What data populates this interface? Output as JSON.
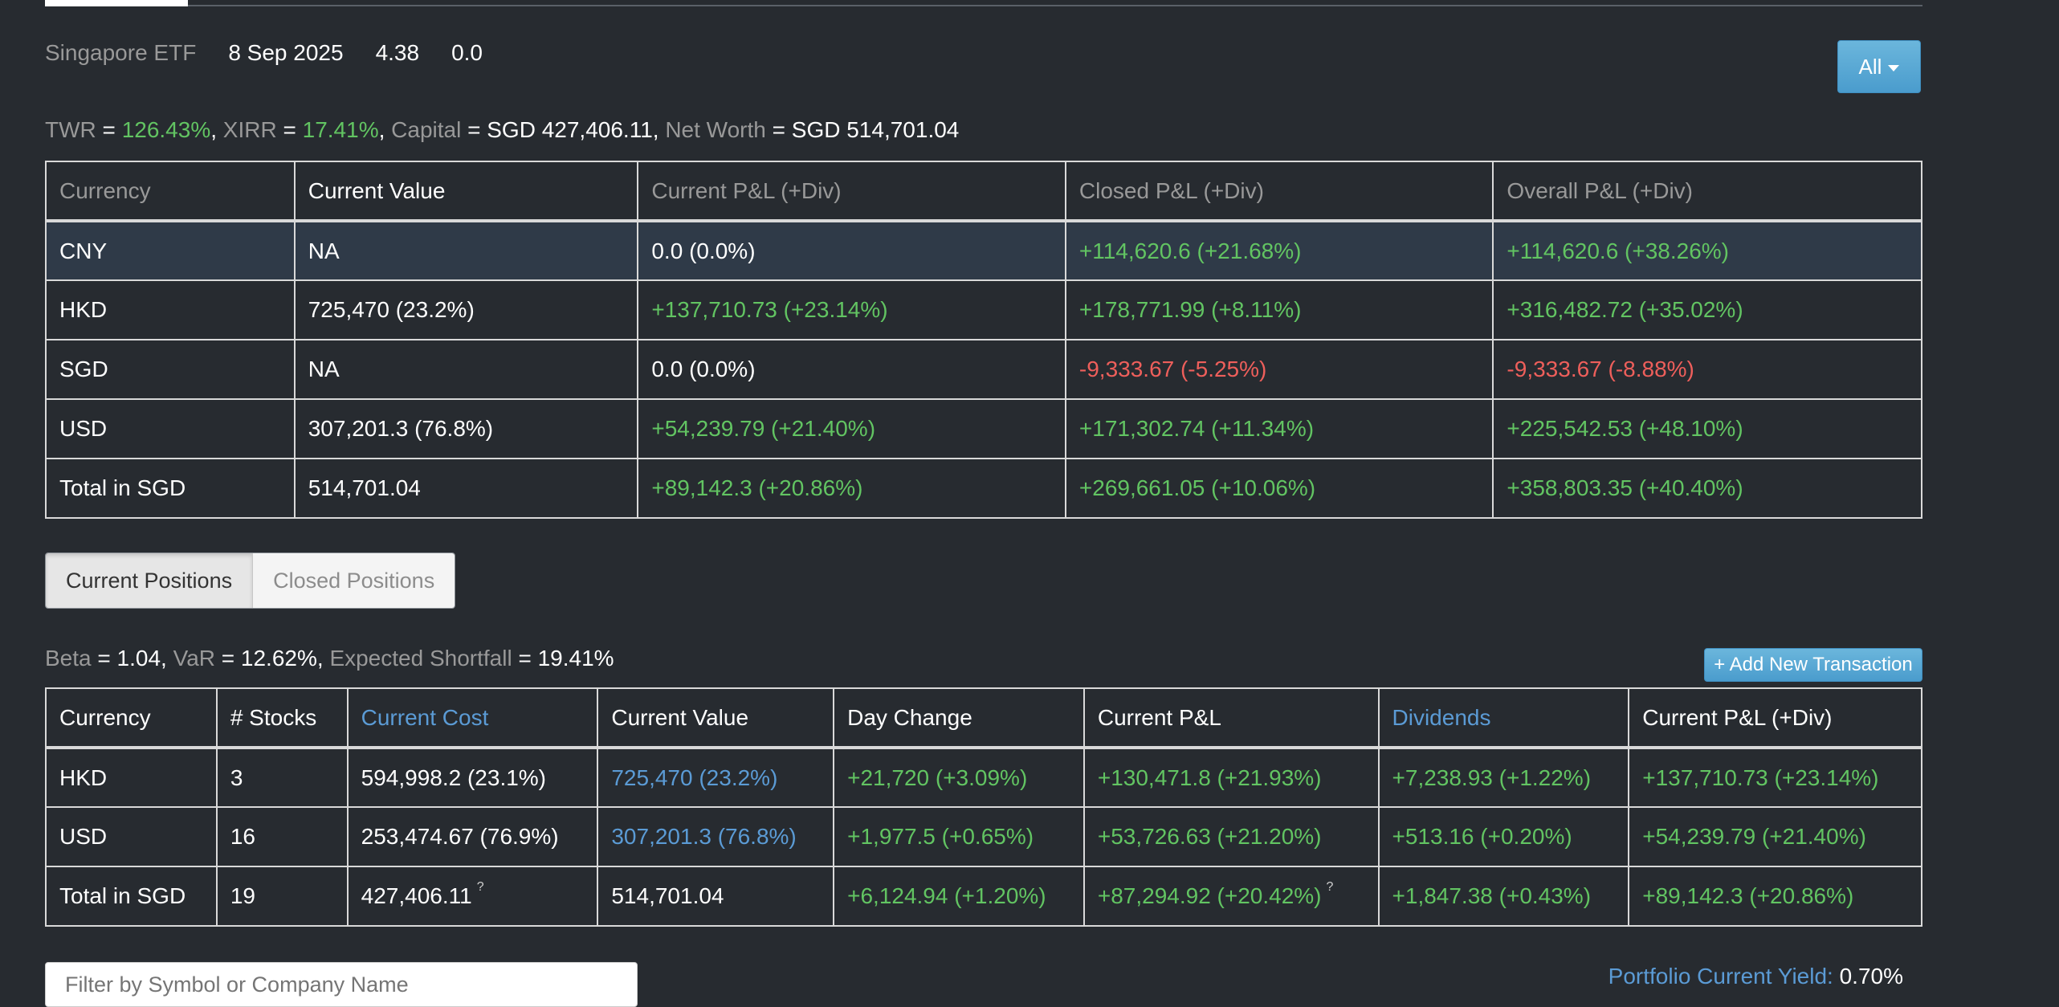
{
  "header": {
    "portfolio_name": "Singapore ETF",
    "date": "8 Sep 2025",
    "value1": "4.38",
    "value2": "0.0",
    "filter_button": "All"
  },
  "stats": {
    "twr_label": "TWR",
    "twr_value": "126.43%",
    "xirr_label": "XIRR",
    "xirr_value": "17.41%",
    "capital_label": "Capital",
    "capital_value": "SGD 427,406.11",
    "networth_label": "Net Worth",
    "networth_value": "SGD 514,701.04"
  },
  "summary": {
    "columns": [
      "Currency",
      "Current Value",
      "Current P&L (+Div)",
      "Closed P&L (+Div)",
      "Overall P&L (+Div)"
    ],
    "rows": [
      {
        "currency": "CNY",
        "current_value": "NA",
        "current_pl": "0.0 (0.0%)",
        "closed_pl": "+114,620.6 (+21.68%)",
        "overall_pl": "+114,620.6 (+38.26%)"
      },
      {
        "currency": "HKD",
        "current_value": "725,470 (23.2%)",
        "current_pl": "+137,710.73 (+23.14%)",
        "closed_pl": "+178,771.99 (+8.11%)",
        "overall_pl": "+316,482.72 (+35.02%)"
      },
      {
        "currency": "SGD",
        "current_value": "NA",
        "current_pl": "0.0 (0.0%)",
        "closed_pl": "-9,333.67 (-5.25%)",
        "overall_pl": "-9,333.67 (-8.88%)"
      },
      {
        "currency": "USD",
        "current_value": "307,201.3 (76.8%)",
        "current_pl": "+54,239.79 (+21.40%)",
        "closed_pl": "+171,302.74 (+11.34%)",
        "overall_pl": "+225,542.53 (+48.10%)"
      },
      {
        "currency": "Total in SGD",
        "current_value": "514,701.04",
        "current_pl": "+89,142.3 (+20.86%)",
        "closed_pl": "+269,661.05 (+10.06%)",
        "overall_pl": "+358,803.35 (+40.40%)"
      }
    ]
  },
  "tabs": {
    "current": "Current Positions",
    "closed": "Closed Positions"
  },
  "risk": {
    "beta_label": "Beta",
    "beta_value": "1.04",
    "var_label": "VaR",
    "var_value": "12.62%",
    "es_label": "Expected Shortfall",
    "es_value": "19.41%",
    "add_button": "+ Add New Transaction"
  },
  "positions": {
    "columns": [
      "Currency",
      "# Stocks",
      "Current Cost",
      "Current Value",
      "Day Change",
      "Current P&L",
      "Dividends",
      "Current P&L (+Div)"
    ],
    "rows": [
      {
        "currency": "HKD",
        "stocks": "3",
        "cost": "594,998.2 (23.1%)",
        "value": "725,470 (23.2%)",
        "day": "+21,720 (+3.09%)",
        "pl": "+130,471.8 (+21.93%)",
        "div": "+7,238.93 (+1.22%)",
        "pldiv": "+137,710.73 (+23.14%)"
      },
      {
        "currency": "USD",
        "stocks": "16",
        "cost": "253,474.67 (76.9%)",
        "value": "307,201.3 (76.8%)",
        "day": "+1,977.5 (+0.65%)",
        "pl": "+53,726.63 (+21.20%)",
        "div": "+513.16 (+0.20%)",
        "pldiv": "+54,239.79 (+21.40%)"
      },
      {
        "currency": "Total in SGD",
        "stocks": "19",
        "cost": "427,406.11",
        "value": "514,701.04",
        "day": "+6,124.94 (+1.20%)",
        "pl": "+87,294.92 (+20.42%)",
        "div": "+1,847.38 (+0.43%)",
        "pldiv": "+89,142.3 (+20.86%)"
      }
    ],
    "question_mark": "?"
  },
  "filter": {
    "placeholder": "Filter by Symbol or Company Name"
  },
  "yield": {
    "label": "Portfolio Current Yield:",
    "value": "0.70%"
  }
}
